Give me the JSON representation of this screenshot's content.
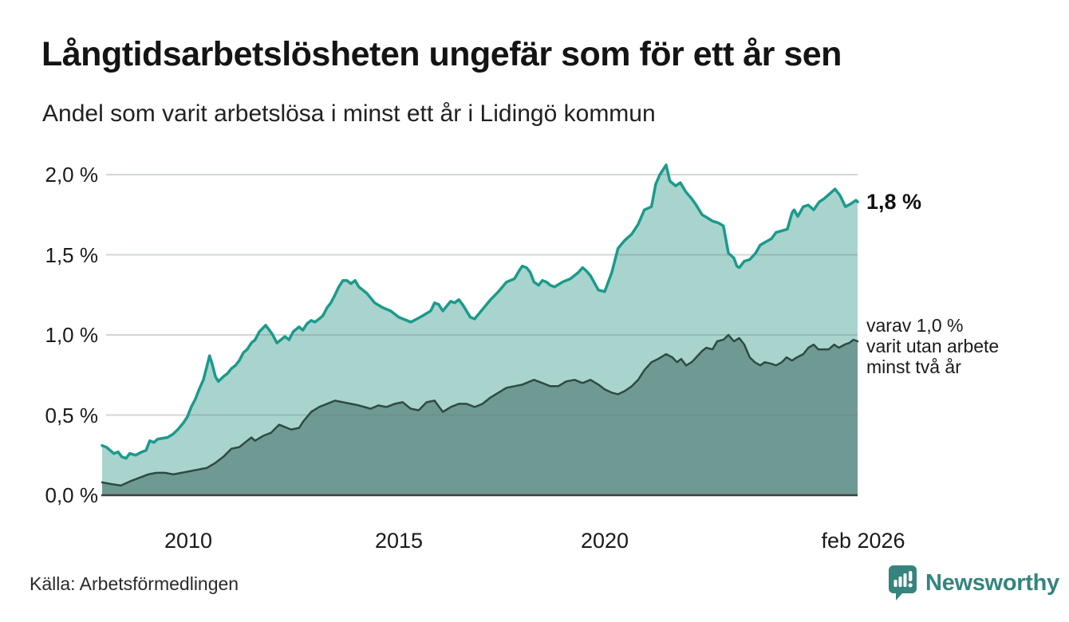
{
  "header": {
    "title": "Långtidsarbetslösheten ungefär som för ett år sen",
    "subtitle": "Andel som varit arbetslösa i minst ett år i Lidingö kommun"
  },
  "annotations": {
    "series1_end": "1,8 %",
    "series2_line1": "varav 1,0 %",
    "series2_line2": "varit utan arbete",
    "series2_line3": "minst två år"
  },
  "footer": {
    "source": "Källa: Arbetsförmedlingen",
    "brand": "Newsworthy"
  },
  "colors": {
    "series1_line": "#1b9a8c",
    "series1_fill": "#a9d4cd",
    "series2_line": "#2e4a45",
    "series2_fill": "#6f9a94",
    "gridline": "rgba(108,122,125,0.30)",
    "baseline": "#3f3f3f",
    "brand_teal": "#35847d",
    "text": "#1a1a1a"
  },
  "chart_data": {
    "type": "area",
    "title": "Långtidsarbetslösheten ungefär som för ett år sen",
    "subtitle": "Andel som varit arbetslösa i minst ett år i Lidingö kommun",
    "unit": "%",
    "grid": true,
    "legend": "none",
    "x_range": [
      2007.98,
      2026.07
    ],
    "y_range": [
      0,
      2.1
    ],
    "x_ticks": [
      {
        "label": "2010",
        "t": 2010
      },
      {
        "label": "2015",
        "t": 2015
      },
      {
        "label": "2020",
        "t": 2020
      },
      {
        "label": "feb 2026",
        "t": 2026.07
      }
    ],
    "y_ticks": [
      {
        "label": "2,0 %",
        "v": 2.0
      },
      {
        "label": "1,5 %",
        "v": 1.5
      },
      {
        "label": "1,0 %",
        "v": 1.0
      },
      {
        "label": "0,5 %",
        "v": 0.5
      },
      {
        "label": "0,0 %",
        "v": 0.0
      }
    ],
    "series": [
      {
        "name": "Andel som varit arbetslösa minst ett år",
        "end_label": "1,8 %",
        "end_value": 1.8,
        "line_color": "#1b9a8c",
        "fill_color": "#a9d4cd",
        "points": [
          [
            2008.0,
            0.31
          ],
          [
            2008.1,
            0.3
          ],
          [
            2008.28,
            0.26
          ],
          [
            2008.38,
            0.27
          ],
          [
            2008.47,
            0.24
          ],
          [
            2008.57,
            0.23
          ],
          [
            2008.66,
            0.26
          ],
          [
            2008.8,
            0.25
          ],
          [
            2008.95,
            0.27
          ],
          [
            2009.05,
            0.28
          ],
          [
            2009.14,
            0.34
          ],
          [
            2009.24,
            0.33
          ],
          [
            2009.33,
            0.35
          ],
          [
            2009.56,
            0.36
          ],
          [
            2009.69,
            0.38
          ],
          [
            2009.81,
            0.41
          ],
          [
            2009.94,
            0.45
          ],
          [
            2010.04,
            0.49
          ],
          [
            2010.13,
            0.55
          ],
          [
            2010.23,
            0.6
          ],
          [
            2010.32,
            0.66
          ],
          [
            2010.42,
            0.72
          ],
          [
            2010.5,
            0.8
          ],
          [
            2010.57,
            0.87
          ],
          [
            2010.63,
            0.82
          ],
          [
            2010.71,
            0.74
          ],
          [
            2010.78,
            0.71
          ],
          [
            2010.9,
            0.74
          ],
          [
            2011.0,
            0.76
          ],
          [
            2011.09,
            0.79
          ],
          [
            2011.19,
            0.81
          ],
          [
            2011.28,
            0.84
          ],
          [
            2011.38,
            0.89
          ],
          [
            2011.47,
            0.91
          ],
          [
            2011.57,
            0.95
          ],
          [
            2011.66,
            0.97
          ],
          [
            2011.76,
            1.02
          ],
          [
            2011.91,
            1.06
          ],
          [
            2012.0,
            1.03
          ],
          [
            2012.08,
            1.0
          ],
          [
            2012.18,
            0.95
          ],
          [
            2012.28,
            0.97
          ],
          [
            2012.37,
            0.99
          ],
          [
            2012.47,
            0.97
          ],
          [
            2012.57,
            1.02
          ],
          [
            2012.71,
            1.05
          ],
          [
            2012.8,
            1.03
          ],
          [
            2012.9,
            1.07
          ],
          [
            2013.0,
            1.09
          ],
          [
            2013.09,
            1.08
          ],
          [
            2013.19,
            1.1
          ],
          [
            2013.28,
            1.12
          ],
          [
            2013.38,
            1.17
          ],
          [
            2013.47,
            1.2
          ],
          [
            2013.57,
            1.25
          ],
          [
            2013.66,
            1.3
          ],
          [
            2013.76,
            1.34
          ],
          [
            2013.85,
            1.34
          ],
          [
            2013.95,
            1.32
          ],
          [
            2014.05,
            1.34
          ],
          [
            2014.14,
            1.3
          ],
          [
            2014.33,
            1.26
          ],
          [
            2014.52,
            1.2
          ],
          [
            2014.71,
            1.17
          ],
          [
            2014.9,
            1.15
          ],
          [
            2015.1,
            1.11
          ],
          [
            2015.29,
            1.09
          ],
          [
            2015.38,
            1.08
          ],
          [
            2015.53,
            1.1
          ],
          [
            2015.67,
            1.12
          ],
          [
            2015.86,
            1.15
          ],
          [
            2015.95,
            1.2
          ],
          [
            2016.05,
            1.19
          ],
          [
            2016.15,
            1.15
          ],
          [
            2016.24,
            1.18
          ],
          [
            2016.34,
            1.21
          ],
          [
            2016.43,
            1.2
          ],
          [
            2016.53,
            1.22
          ],
          [
            2016.62,
            1.19
          ],
          [
            2016.81,
            1.11
          ],
          [
            2016.91,
            1.1
          ],
          [
            2017.1,
            1.16
          ],
          [
            2017.29,
            1.22
          ],
          [
            2017.48,
            1.27
          ],
          [
            2017.67,
            1.33
          ],
          [
            2017.86,
            1.35
          ],
          [
            2017.95,
            1.39
          ],
          [
            2018.05,
            1.43
          ],
          [
            2018.15,
            1.42
          ],
          [
            2018.24,
            1.39
          ],
          [
            2018.33,
            1.33
          ],
          [
            2018.44,
            1.31
          ],
          [
            2018.53,
            1.34
          ],
          [
            2018.63,
            1.33
          ],
          [
            2018.72,
            1.31
          ],
          [
            2018.82,
            1.3
          ],
          [
            2019.01,
            1.33
          ],
          [
            2019.1,
            1.34
          ],
          [
            2019.2,
            1.35
          ],
          [
            2019.39,
            1.39
          ],
          [
            2019.49,
            1.42
          ],
          [
            2019.58,
            1.4
          ],
          [
            2019.68,
            1.37
          ],
          [
            2019.87,
            1.28
          ],
          [
            2020.02,
            1.27
          ],
          [
            2020.19,
            1.39
          ],
          [
            2020.34,
            1.54
          ],
          [
            2020.5,
            1.59
          ],
          [
            2020.67,
            1.63
          ],
          [
            2020.82,
            1.69
          ],
          [
            2020.97,
            1.78
          ],
          [
            2021.14,
            1.8
          ],
          [
            2021.24,
            1.94
          ],
          [
            2021.34,
            2.0
          ],
          [
            2021.49,
            2.06
          ],
          [
            2021.58,
            1.96
          ],
          [
            2021.72,
            1.93
          ],
          [
            2021.83,
            1.95
          ],
          [
            2021.97,
            1.89
          ],
          [
            2022.1,
            1.85
          ],
          [
            2022.21,
            1.81
          ],
          [
            2022.35,
            1.75
          ],
          [
            2022.48,
            1.73
          ],
          [
            2022.6,
            1.71
          ],
          [
            2022.73,
            1.7
          ],
          [
            2022.86,
            1.68
          ],
          [
            2022.98,
            1.51
          ],
          [
            2023.11,
            1.48
          ],
          [
            2023.18,
            1.43
          ],
          [
            2023.24,
            1.42
          ],
          [
            2023.36,
            1.46
          ],
          [
            2023.49,
            1.47
          ],
          [
            2023.63,
            1.51
          ],
          [
            2023.74,
            1.56
          ],
          [
            2023.87,
            1.58
          ],
          [
            2024.01,
            1.6
          ],
          [
            2024.12,
            1.64
          ],
          [
            2024.26,
            1.65
          ],
          [
            2024.39,
            1.66
          ],
          [
            2024.5,
            1.76
          ],
          [
            2024.55,
            1.78
          ],
          [
            2024.64,
            1.74
          ],
          [
            2024.77,
            1.8
          ],
          [
            2024.89,
            1.81
          ],
          [
            2025.02,
            1.78
          ],
          [
            2025.15,
            1.83
          ],
          [
            2025.27,
            1.85
          ],
          [
            2025.4,
            1.88
          ],
          [
            2025.53,
            1.91
          ],
          [
            2025.65,
            1.87
          ],
          [
            2025.78,
            1.8
          ],
          [
            2025.92,
            1.82
          ],
          [
            2026.03,
            1.84
          ],
          [
            2026.07,
            1.83
          ]
        ]
      },
      {
        "name": "varav utan arbete minst två år",
        "end_label": "varav 1,0 % varit utan arbete minst två år",
        "end_value": 1.0,
        "line_color": "#2e4a45",
        "fill_color": "#6f9a94",
        "points": [
          [
            2008.0,
            0.08
          ],
          [
            2008.2,
            0.07
          ],
          [
            2008.45,
            0.06
          ],
          [
            2008.7,
            0.09
          ],
          [
            2008.9,
            0.11
          ],
          [
            2009.1,
            0.13
          ],
          [
            2009.3,
            0.14
          ],
          [
            2009.5,
            0.14
          ],
          [
            2009.7,
            0.13
          ],
          [
            2009.9,
            0.14
          ],
          [
            2010.1,
            0.15
          ],
          [
            2010.3,
            0.16
          ],
          [
            2010.5,
            0.17
          ],
          [
            2010.7,
            0.2
          ],
          [
            2010.9,
            0.24
          ],
          [
            2011.09,
            0.29
          ],
          [
            2011.28,
            0.3
          ],
          [
            2011.47,
            0.34
          ],
          [
            2011.57,
            0.36
          ],
          [
            2011.66,
            0.34
          ],
          [
            2011.85,
            0.37
          ],
          [
            2012.04,
            0.39
          ],
          [
            2012.23,
            0.44
          ],
          [
            2012.33,
            0.43
          ],
          [
            2012.52,
            0.41
          ],
          [
            2012.71,
            0.42
          ],
          [
            2012.81,
            0.46
          ],
          [
            2013.0,
            0.52
          ],
          [
            2013.19,
            0.55
          ],
          [
            2013.38,
            0.57
          ],
          [
            2013.57,
            0.59
          ],
          [
            2013.76,
            0.58
          ],
          [
            2013.95,
            0.57
          ],
          [
            2014.14,
            0.56
          ],
          [
            2014.42,
            0.54
          ],
          [
            2014.61,
            0.56
          ],
          [
            2014.8,
            0.55
          ],
          [
            2015.0,
            0.57
          ],
          [
            2015.19,
            0.58
          ],
          [
            2015.38,
            0.54
          ],
          [
            2015.57,
            0.53
          ],
          [
            2015.76,
            0.58
          ],
          [
            2015.95,
            0.59
          ],
          [
            2016.15,
            0.52
          ],
          [
            2016.34,
            0.55
          ],
          [
            2016.53,
            0.57
          ],
          [
            2016.72,
            0.57
          ],
          [
            2016.91,
            0.55
          ],
          [
            2017.1,
            0.57
          ],
          [
            2017.29,
            0.61
          ],
          [
            2017.48,
            0.64
          ],
          [
            2017.67,
            0.67
          ],
          [
            2017.86,
            0.68
          ],
          [
            2018.05,
            0.69
          ],
          [
            2018.33,
            0.72
          ],
          [
            2018.53,
            0.7
          ],
          [
            2018.72,
            0.68
          ],
          [
            2018.91,
            0.68
          ],
          [
            2019.1,
            0.71
          ],
          [
            2019.3,
            0.72
          ],
          [
            2019.49,
            0.7
          ],
          [
            2019.68,
            0.72
          ],
          [
            2019.87,
            0.69
          ],
          [
            2020.02,
            0.66
          ],
          [
            2020.19,
            0.64
          ],
          [
            2020.34,
            0.63
          ],
          [
            2020.5,
            0.65
          ],
          [
            2020.67,
            0.68
          ],
          [
            2020.82,
            0.72
          ],
          [
            2020.97,
            0.78
          ],
          [
            2021.14,
            0.83
          ],
          [
            2021.3,
            0.85
          ],
          [
            2021.49,
            0.88
          ],
          [
            2021.64,
            0.86
          ],
          [
            2021.75,
            0.83
          ],
          [
            2021.85,
            0.85
          ],
          [
            2021.97,
            0.81
          ],
          [
            2022.1,
            0.83
          ],
          [
            2022.21,
            0.86
          ],
          [
            2022.35,
            0.9
          ],
          [
            2022.45,
            0.92
          ],
          [
            2022.6,
            0.91
          ],
          [
            2022.71,
            0.96
          ],
          [
            2022.86,
            0.97
          ],
          [
            2022.98,
            1.0
          ],
          [
            2023.11,
            0.96
          ],
          [
            2023.24,
            0.98
          ],
          [
            2023.36,
            0.94
          ],
          [
            2023.49,
            0.86
          ],
          [
            2023.61,
            0.83
          ],
          [
            2023.74,
            0.81
          ],
          [
            2023.85,
            0.83
          ],
          [
            2024.01,
            0.82
          ],
          [
            2024.12,
            0.81
          ],
          [
            2024.26,
            0.83
          ],
          [
            2024.37,
            0.86
          ],
          [
            2024.5,
            0.84
          ],
          [
            2024.62,
            0.86
          ],
          [
            2024.77,
            0.88
          ],
          [
            2024.89,
            0.92
          ],
          [
            2025.02,
            0.94
          ],
          [
            2025.13,
            0.91
          ],
          [
            2025.27,
            0.91
          ],
          [
            2025.38,
            0.91
          ],
          [
            2025.51,
            0.94
          ],
          [
            2025.62,
            0.92
          ],
          [
            2025.76,
            0.94
          ],
          [
            2025.87,
            0.95
          ],
          [
            2025.97,
            0.97
          ],
          [
            2026.07,
            0.96
          ]
        ]
      }
    ]
  }
}
